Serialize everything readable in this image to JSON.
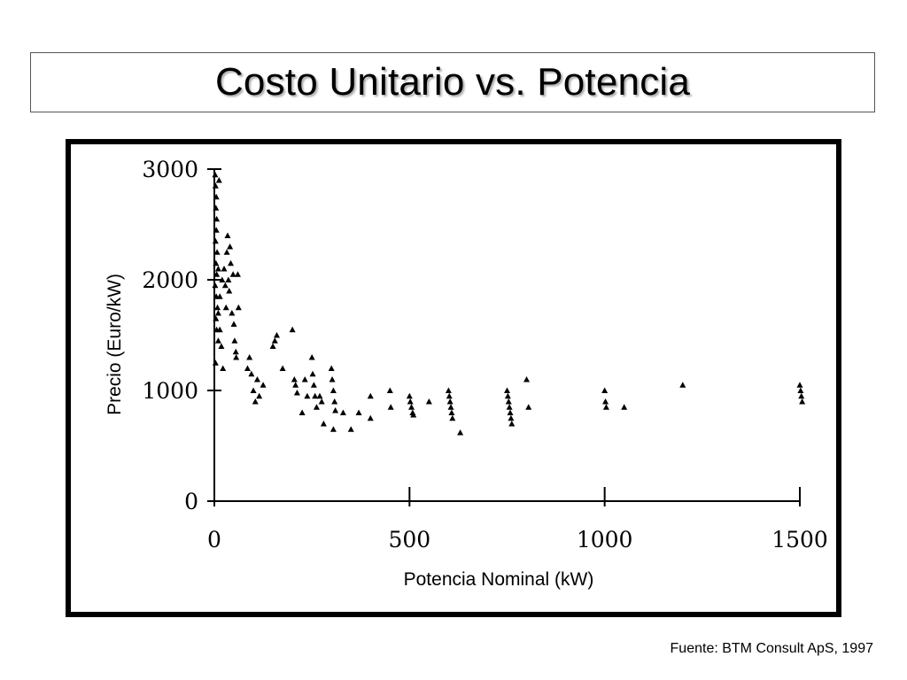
{
  "slide": {
    "title": "Costo Unitario vs. Potencia",
    "source": "Fuente: BTM Consult ApS, 1997"
  },
  "chart_data": {
    "type": "scatter",
    "title": "",
    "xlabel": "Potencia Nominal (kW)",
    "ylabel": "Precio (Euro/kW)",
    "xlim": [
      0,
      1500
    ],
    "ylim": [
      0,
      3000
    ],
    "xticks": [
      "0",
      "500",
      "1000",
      "1500"
    ],
    "yticks": [
      "0",
      "1000",
      "2000",
      "3000"
    ],
    "grid": false,
    "marker_color": "#000000",
    "series": [
      {
        "points": [
          [
            2,
            2950
          ],
          [
            3,
            2850
          ],
          [
            5,
            2750
          ],
          [
            4,
            2650
          ],
          [
            6,
            2550
          ],
          [
            5,
            2450
          ],
          [
            3,
            2350
          ],
          [
            7,
            2250
          ],
          [
            4,
            2150
          ],
          [
            6,
            2050
          ],
          [
            2,
            1950
          ],
          [
            5,
            1850
          ],
          [
            8,
            1750
          ],
          [
            4,
            1650
          ],
          [
            6,
            1550
          ],
          [
            10,
            1450
          ],
          [
            3,
            1250
          ],
          [
            12,
            2900
          ],
          [
            10,
            2100
          ],
          [
            14,
            1850
          ],
          [
            10,
            1700
          ],
          [
            14,
            1550
          ],
          [
            18,
            1400
          ],
          [
            20,
            2000
          ],
          [
            22,
            1200
          ],
          [
            25,
            2100
          ],
          [
            28,
            1950
          ],
          [
            30,
            1750
          ],
          [
            32,
            2250
          ],
          [
            34,
            2400
          ],
          [
            36,
            2000
          ],
          [
            38,
            1900
          ],
          [
            40,
            2300
          ],
          [
            42,
            2150
          ],
          [
            45,
            1700
          ],
          [
            48,
            2050
          ],
          [
            50,
            1600
          ],
          [
            52,
            1450
          ],
          [
            55,
            1350
          ],
          [
            56,
            1300
          ],
          [
            60,
            2050
          ],
          [
            62,
            1750
          ],
          [
            85,
            1200
          ],
          [
            90,
            1300
          ],
          [
            95,
            1150
          ],
          [
            100,
            1000
          ],
          [
            105,
            900
          ],
          [
            110,
            1100
          ],
          [
            115,
            950
          ],
          [
            125,
            1050
          ],
          [
            150,
            1400
          ],
          [
            155,
            1450
          ],
          [
            160,
            1500
          ],
          [
            175,
            1200
          ],
          [
            200,
            1550
          ],
          [
            205,
            1100
          ],
          [
            208,
            1050
          ],
          [
            212,
            980
          ],
          [
            225,
            800
          ],
          [
            232,
            1100
          ],
          [
            238,
            950
          ],
          [
            250,
            1300
          ],
          [
            252,
            1150
          ],
          [
            255,
            1050
          ],
          [
            258,
            950
          ],
          [
            262,
            850
          ],
          [
            270,
            950
          ],
          [
            275,
            900
          ],
          [
            280,
            700
          ],
          [
            300,
            1200
          ],
          [
            302,
            1100
          ],
          [
            305,
            1000
          ],
          [
            308,
            900
          ],
          [
            310,
            820
          ],
          [
            305,
            650
          ],
          [
            330,
            800
          ],
          [
            350,
            650
          ],
          [
            370,
            800
          ],
          [
            400,
            950
          ],
          [
            400,
            750
          ],
          [
            450,
            1000
          ],
          [
            452,
            850
          ],
          [
            500,
            950
          ],
          [
            502,
            900
          ],
          [
            505,
            850
          ],
          [
            508,
            800
          ],
          [
            510,
            780
          ],
          [
            550,
            900
          ],
          [
            600,
            1000
          ],
          [
            602,
            950
          ],
          [
            604,
            900
          ],
          [
            606,
            850
          ],
          [
            608,
            800
          ],
          [
            610,
            750
          ],
          [
            630,
            620
          ],
          [
            750,
            1000
          ],
          [
            752,
            950
          ],
          [
            754,
            900
          ],
          [
            756,
            850
          ],
          [
            758,
            800
          ],
          [
            760,
            750
          ],
          [
            762,
            700
          ],
          [
            800,
            1100
          ],
          [
            805,
            850
          ],
          [
            1000,
            1000
          ],
          [
            1002,
            900
          ],
          [
            1004,
            850
          ],
          [
            1050,
            850
          ],
          [
            1200,
            1050
          ],
          [
            1500,
            1050
          ],
          [
            1502,
            1000
          ],
          [
            1504,
            950
          ],
          [
            1506,
            900
          ]
        ]
      }
    ]
  }
}
